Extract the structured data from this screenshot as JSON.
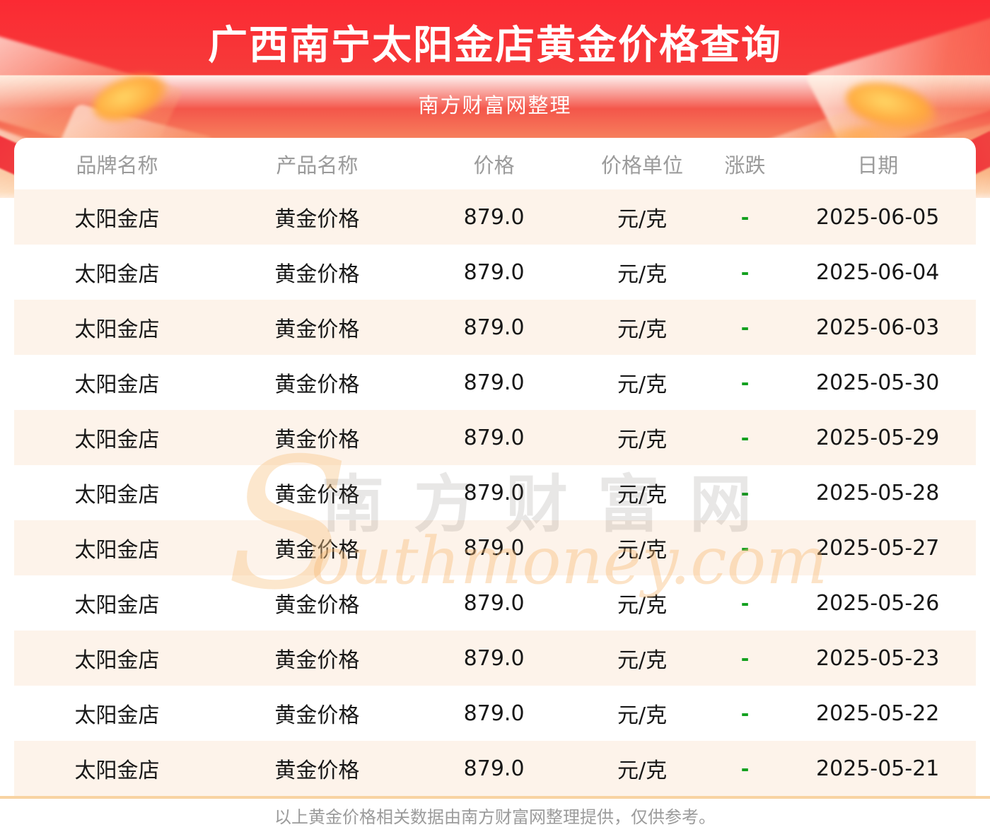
{
  "banner": {
    "title": "广西南宁太阳金店黄金价格查询",
    "subtitle": "南方财富网整理"
  },
  "table": {
    "headers": [
      "品牌名称",
      "产品名称",
      "价格",
      "价格单位",
      "涨跌",
      "日期"
    ],
    "rows": [
      {
        "brand": "太阳金店",
        "product": "黄金价格",
        "price": "879.0",
        "unit": "元/克",
        "change": "-",
        "date": "2025-06-05"
      },
      {
        "brand": "太阳金店",
        "product": "黄金价格",
        "price": "879.0",
        "unit": "元/克",
        "change": "-",
        "date": "2025-06-04"
      },
      {
        "brand": "太阳金店",
        "product": "黄金价格",
        "price": "879.0",
        "unit": "元/克",
        "change": "-",
        "date": "2025-06-03"
      },
      {
        "brand": "太阳金店",
        "product": "黄金价格",
        "price": "879.0",
        "unit": "元/克",
        "change": "-",
        "date": "2025-05-30"
      },
      {
        "brand": "太阳金店",
        "product": "黄金价格",
        "price": "879.0",
        "unit": "元/克",
        "change": "-",
        "date": "2025-05-29"
      },
      {
        "brand": "太阳金店",
        "product": "黄金价格",
        "price": "879.0",
        "unit": "元/克",
        "change": "-",
        "date": "2025-05-28"
      },
      {
        "brand": "太阳金店",
        "product": "黄金价格",
        "price": "879.0",
        "unit": "元/克",
        "change": "-",
        "date": "2025-05-27"
      },
      {
        "brand": "太阳金店",
        "product": "黄金价格",
        "price": "879.0",
        "unit": "元/克",
        "change": "-",
        "date": "2025-05-26"
      },
      {
        "brand": "太阳金店",
        "product": "黄金价格",
        "price": "879.0",
        "unit": "元/克",
        "change": "-",
        "date": "2025-05-23"
      },
      {
        "brand": "太阳金店",
        "product": "黄金价格",
        "price": "879.0",
        "unit": "元/克",
        "change": "-",
        "date": "2025-05-22"
      },
      {
        "brand": "太阳金店",
        "product": "黄金价格",
        "price": "879.0",
        "unit": "元/克",
        "change": "-",
        "date": "2025-05-21"
      }
    ]
  },
  "watermark": {
    "initial": "S",
    "cn": "南方财富网",
    "en": "outhmoney.com"
  },
  "footer": {
    "note": "以上黄金价格相关数据由南方财富网整理提供，仅供参考。"
  },
  "colors": {
    "banner_red_top": "#fb2a33",
    "banner_peach_bottom": "#f9b88c",
    "row_stripe": "#fdf3ea",
    "change_green": "#12a01e",
    "divider_orange": "#f8d3a2",
    "header_text_gray": "#9b9b9b"
  }
}
